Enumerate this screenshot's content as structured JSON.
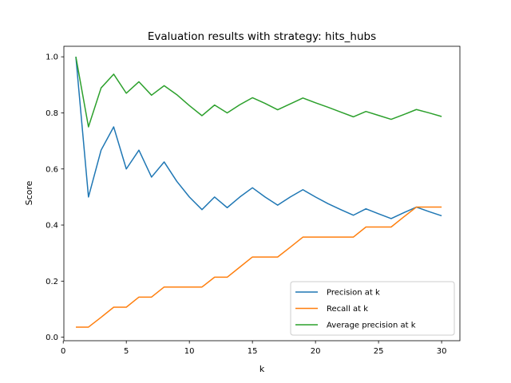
{
  "chart_data": {
    "type": "line",
    "title": "Evaluation results with strategy: hits_hubs",
    "xlabel": "k",
    "ylabel": "Score",
    "xlim": [
      0.05,
      31.45
    ],
    "ylim": [
      -0.0125,
      1.0375
    ],
    "xticks": [
      0,
      5,
      10,
      15,
      20,
      25,
      30
    ],
    "yticks": [
      0.0,
      0.2,
      0.4,
      0.6,
      0.8,
      1.0
    ],
    "xtick_labels": [
      "0",
      "5",
      "10",
      "15",
      "20",
      "25",
      "30"
    ],
    "ytick_labels": [
      "0.0",
      "0.2",
      "0.4",
      "0.6",
      "0.8",
      "1.0"
    ],
    "legend_position": "bottom-right",
    "x": [
      1,
      2,
      3,
      4,
      5,
      6,
      7,
      8,
      9,
      10,
      11,
      12,
      13,
      14,
      15,
      16,
      17,
      18,
      19,
      20,
      21,
      22,
      23,
      24,
      25,
      26,
      27,
      28,
      29,
      30
    ],
    "series": [
      {
        "name": "Precision at k",
        "color": "#1f77b4",
        "values": [
          1.0,
          0.5,
          0.667,
          0.75,
          0.6,
          0.667,
          0.571,
          0.625,
          0.556,
          0.5,
          0.455,
          0.5,
          0.462,
          0.5,
          0.533,
          0.5,
          0.471,
          0.5,
          0.526,
          0.5,
          0.476,
          0.455,
          0.435,
          0.458,
          0.44,
          0.423,
          0.444,
          0.464,
          0.448,
          0.433
        ]
      },
      {
        "name": "Recall at k",
        "color": "#ff7f0e",
        "values": [
          0.036,
          0.036,
          0.071,
          0.107,
          0.107,
          0.143,
          0.143,
          0.179,
          0.179,
          0.179,
          0.179,
          0.214,
          0.214,
          0.25,
          0.286,
          0.286,
          0.286,
          0.321,
          0.357,
          0.357,
          0.357,
          0.357,
          0.357,
          0.393,
          0.393,
          0.393,
          0.429,
          0.464,
          0.464,
          0.464
        ]
      },
      {
        "name": "Average precision at k",
        "color": "#2ca02c",
        "values": [
          1.0,
          0.75,
          0.889,
          0.938,
          0.87,
          0.911,
          0.863,
          0.897,
          0.865,
          0.826,
          0.79,
          0.828,
          0.8,
          0.829,
          0.854,
          0.834,
          0.811,
          0.832,
          0.853,
          0.836,
          0.82,
          0.803,
          0.786,
          0.805,
          0.791,
          0.777,
          0.794,
          0.812,
          0.8,
          0.787
        ]
      }
    ]
  }
}
